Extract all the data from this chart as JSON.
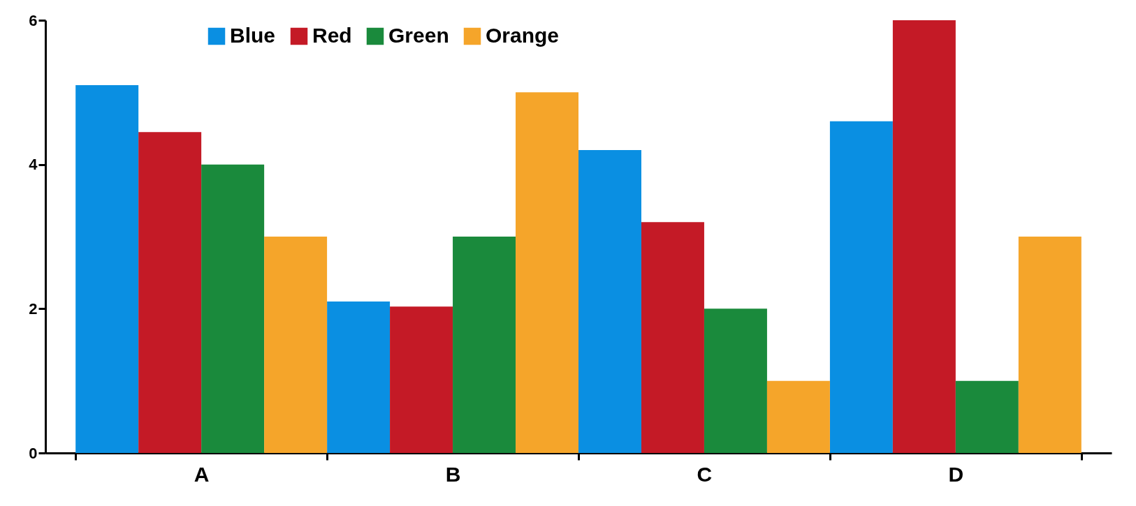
{
  "chart_data": {
    "type": "bar",
    "categories": [
      "A",
      "B",
      "C",
      "D"
    ],
    "series": [
      {
        "name": "Blue",
        "color": "#0a8fe2",
        "values": [
          5.1,
          2.1,
          4.2,
          4.6
        ]
      },
      {
        "name": "Red",
        "color": "#c41a26",
        "values": [
          4.45,
          2.03,
          3.2,
          6.0
        ]
      },
      {
        "name": "Green",
        "color": "#1a8a3c",
        "values": [
          4.0,
          3.0,
          2.0,
          1.0
        ]
      },
      {
        "name": "Orange",
        "color": "#f5a52a",
        "values": [
          3.0,
          5.0,
          1.0,
          3.0
        ]
      }
    ],
    "ylim": [
      0,
      6
    ],
    "yticks": [
      0,
      2,
      4,
      6
    ],
    "grid": false,
    "legend": "top left"
  }
}
